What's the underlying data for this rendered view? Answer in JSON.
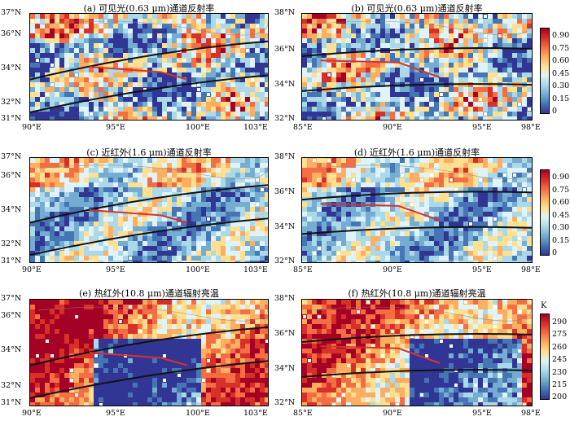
{
  "panels": [
    {
      "id": "a",
      "title": "(a) 可见光(0.63 μm)通道反射率",
      "lat_labels": [
        "37°N",
        "36°N",
        "34°N",
        "32°N",
        "31°N"
      ],
      "lon_labels": [
        "90°E",
        "95°E",
        "100°E",
        "103°E"
      ],
      "palette": "vis"
    },
    {
      "id": "b",
      "title": "(b) 可见光(0.63 μm)通道反射率",
      "lat_labels": [
        "38°N",
        "36°N",
        "34°N",
        "32°N"
      ],
      "lon_labels": [
        "85°E",
        "90°E",
        "95°E",
        "98°E"
      ],
      "palette": "vis"
    },
    {
      "id": "c",
      "title": "(c) 近红外(1.6 μm)通道反射率",
      "lat_labels": [
        "37°N",
        "36°N",
        "34°N",
        "32°N",
        "31°N"
      ],
      "lon_labels": [
        "90°E",
        "95°E",
        "100°E",
        "103°E"
      ],
      "palette": "nir"
    },
    {
      "id": "d",
      "title": "(d) 近红外(1.6 μm)通道反射率",
      "lat_labels": [
        "38°N",
        "36°N",
        "34°N",
        "32°N"
      ],
      "lon_labels": [
        "85°E",
        "90°E",
        "95°E",
        "98°E"
      ],
      "palette": "nir"
    },
    {
      "id": "e",
      "title": "(e) 热红外(10.8 μm)通道辐射亮温",
      "lat_labels": [
        "37°N",
        "36°N",
        "34°N",
        "32°N",
        "31°N"
      ],
      "lon_labels": [
        "90°E",
        "95°E",
        "100°E",
        "103°E"
      ],
      "palette": "tir"
    },
    {
      "id": "f",
      "title": "(f) 热红外(10.8 μm)通道辐射亮温",
      "lat_labels": [
        "38°N",
        "36°N",
        "34°N",
        "32°N"
      ],
      "lon_labels": [
        "85°E",
        "90°E",
        "95°E",
        "98°E"
      ],
      "palette": "tir"
    }
  ],
  "colorbars": [
    {
      "id": "cb1",
      "unit": "",
      "ticks": [
        "0.90",
        "0.75",
        "0.60",
        "0.45",
        "0.30",
        "0.15",
        "0"
      ]
    },
    {
      "id": "cb2",
      "unit": "",
      "ticks": [
        "0.90",
        "0.75",
        "0.60",
        "0.45",
        "0.30",
        "0.15",
        "0"
      ]
    },
    {
      "id": "cb3",
      "unit": "K",
      "ticks": [
        "290",
        "275",
        "260",
        "245",
        "230",
        "215",
        "200"
      ]
    }
  ],
  "colors": {
    "track_line": "#d9322c",
    "boundary_line": "#111111",
    "ramp": [
      "#313695",
      "#4575b4",
      "#74add1",
      "#abd9e9",
      "#e0f3f8",
      "#fee090",
      "#fdae61",
      "#f46d43",
      "#d73027",
      "#a50026"
    ]
  }
}
